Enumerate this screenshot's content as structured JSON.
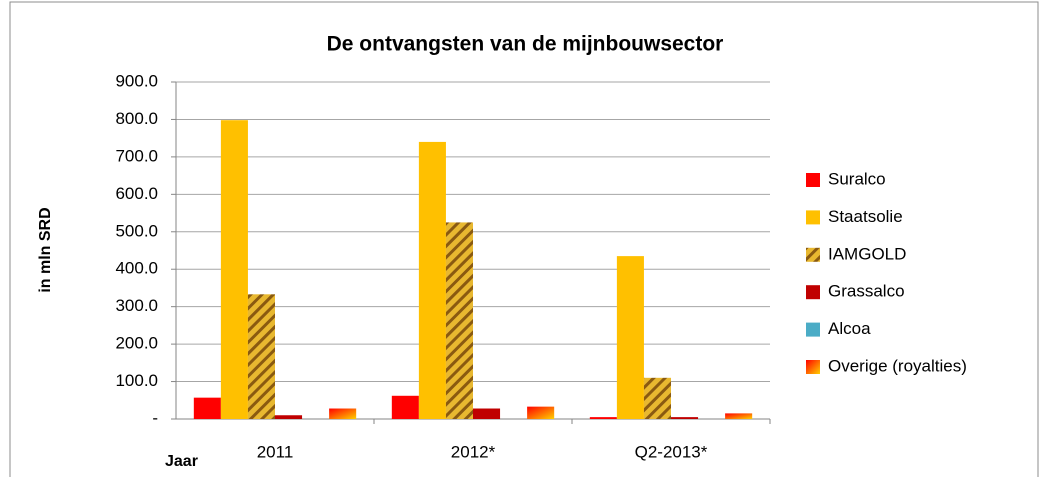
{
  "chart_data": {
    "type": "bar",
    "title": "De ontvangsten van de mijnbouwsector",
    "y_label": "in mln SRD",
    "x_label": "Jaar",
    "categories": [
      "2011",
      "2012*",
      "Q2-2013*"
    ],
    "series": [
      {
        "name": "Suralco",
        "color": "#ff0000",
        "values": [
          57,
          62,
          5
        ]
      },
      {
        "name": "Staatsolie",
        "color": "#ffc000",
        "values": [
          798,
          740,
          435
        ]
      },
      {
        "name": "IAMGOLD",
        "color": "#c8901a",
        "values": [
          333,
          525,
          110
        ]
      },
      {
        "name": "Grassalco",
        "color": "#c00000",
        "values": [
          10,
          28,
          5
        ]
      },
      {
        "name": "Alcoa",
        "color": "#4bacc6",
        "values": [
          0,
          0,
          0
        ]
      },
      {
        "name": "Overige (royalties)",
        "color": "#ff6a00",
        "values": [
          28,
          33,
          15
        ]
      }
    ],
    "ylim": [
      0,
      900
    ],
    "yticks": [
      {
        "value": 0,
        "label": "-"
      },
      {
        "value": 100,
        "label": "100.0"
      },
      {
        "value": 200,
        "label": "200.0"
      },
      {
        "value": 300,
        "label": "300.0"
      },
      {
        "value": 400,
        "label": "400.0"
      },
      {
        "value": 500,
        "label": "500.0"
      },
      {
        "value": 600,
        "label": "600.0"
      },
      {
        "value": 700,
        "label": "700.0"
      },
      {
        "value": 800,
        "label": "800.0"
      },
      {
        "value": 900,
        "label": "900.0"
      }
    ],
    "grid": true,
    "legend": "right"
  }
}
